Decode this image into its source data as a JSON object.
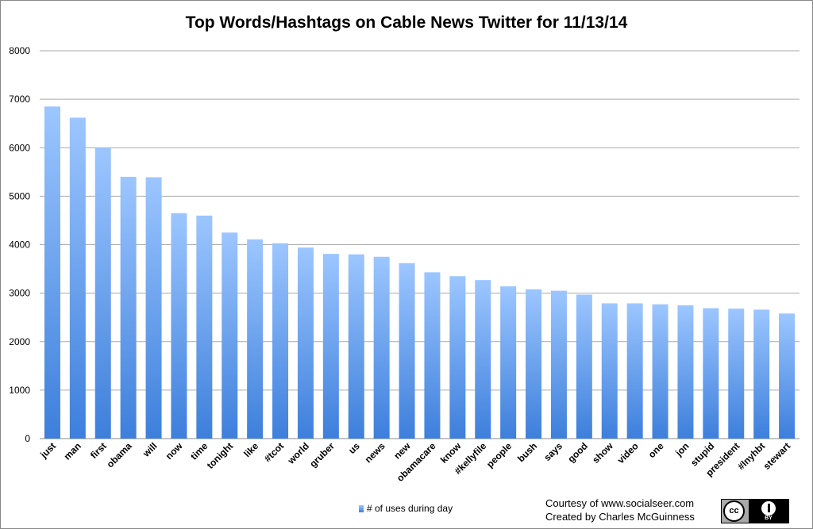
{
  "chart_data": {
    "type": "bar",
    "title": "Top Words/Hashtags on Cable News Twitter for 11/13/14",
    "xlabel": "",
    "ylabel": "",
    "ylim": [
      0,
      8000
    ],
    "yticks": [
      0,
      1000,
      2000,
      3000,
      4000,
      5000,
      6000,
      7000,
      8000
    ],
    "grid": true,
    "legend_position": "bottom",
    "categories": [
      "just",
      "man",
      "first",
      "obama",
      "will",
      "now",
      "time",
      "tonight",
      "like",
      "#tcot",
      "world",
      "gruber",
      "us",
      "news",
      "new",
      "obamacare",
      "know",
      "#kellyfile",
      "people",
      "bush",
      "says",
      "good",
      "show",
      "video",
      "one",
      "jon",
      "stupid",
      "president",
      "#lnyhbt",
      "stewart"
    ],
    "series": [
      {
        "name": "# of uses during day",
        "values": [
          6850,
          6620,
          6000,
          5400,
          5390,
          4650,
          4600,
          4250,
          4110,
          4030,
          3940,
          3810,
          3800,
          3750,
          3620,
          3430,
          3350,
          3270,
          3140,
          3080,
          3050,
          2970,
          2790,
          2790,
          2770,
          2750,
          2690,
          2680,
          2660,
          2580
        ]
      }
    ],
    "colors": {
      "bar_top": "#9cc6ff",
      "bar_bottom": "#3d7fdc",
      "grid": "#aaaaaa"
    }
  },
  "legend": {
    "label": "# of uses during day"
  },
  "credits": {
    "line1": "Courtesy of www.socialseer.com",
    "line2": "Created by Charles McGuinness"
  },
  "license_badge": {
    "cc": "cc",
    "by": "BY",
    "icon": "creative-commons-by-icon"
  }
}
